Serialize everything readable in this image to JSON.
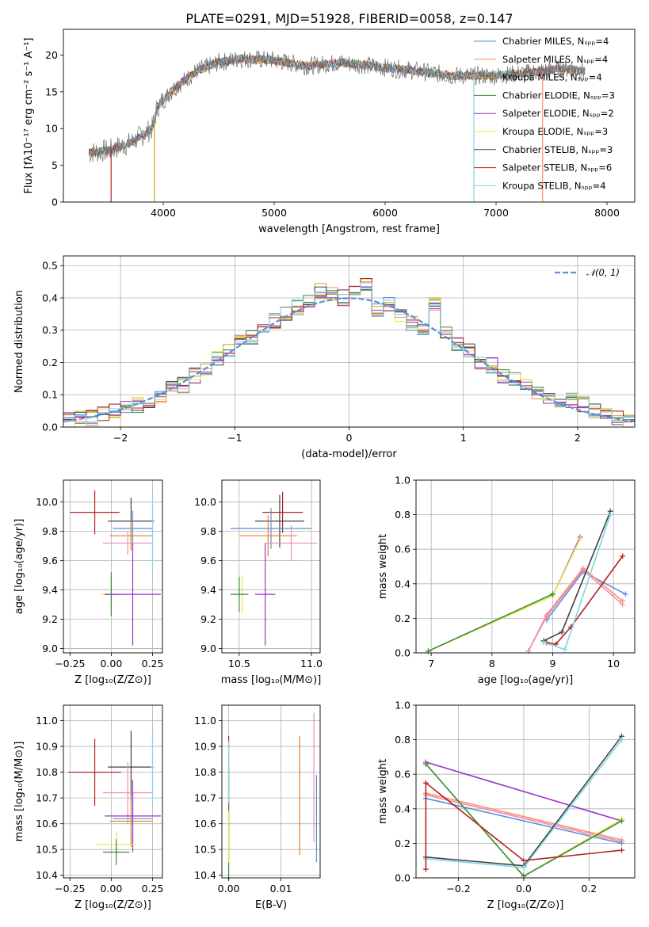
{
  "figure": {
    "title": "PLATE=0291, MJD=51928, FIBERID=0058, z=0.147",
    "colors": {
      "chabrier_miles": "#5b8fd9",
      "salpeter_miles": "#ff8c69",
      "kroupa_miles": "#d4a017",
      "chabrier_elodie": "#3a8a3a",
      "salpeter_elodie": "#9932cc",
      "kroupa_elodie": "#e8e84a",
      "chabrier_stelib": "#404040",
      "salpeter_stelib": "#b22222",
      "kroupa_stelib": "#7fd6e6",
      "gaussian": "#5b8fd9",
      "panel_err_orange": "#e67e22",
      "panel_err_pink": "#f08cb4"
    }
  },
  "chart_data": [
    {
      "id": "spectrum",
      "type": "line",
      "xlabel": "wavelength [Angstrom, rest frame]",
      "ylabel": "Flux [fλ10⁻¹⁷ erg cm⁻² s⁻¹ A⁻¹]",
      "xlim": [
        3100,
        8250
      ],
      "ylim": [
        0,
        23.5
      ],
      "xticks": [
        4000,
        5000,
        6000,
        7000,
        8000
      ],
      "yticks": [
        0,
        5,
        10,
        15,
        20
      ],
      "legend": [
        "Chabrier MILES, Nₛₚₚ=4",
        "Salpeter MILES, Nₛₚₚ=4",
        "Kroupa MILES, Nₛₚₚ=4",
        "Chabrier ELODIE, Nₛₚₚ=3",
        "Salpeter ELODIE, Nₛₚₚ=2",
        "Kroupa ELODIE, Nₛₚₚ=3",
        "Chabrier STELIB, Nₛₚₚ=3",
        "Salpeter STELIB, Nₛₚₚ=6",
        "Kroupa STELIB, Nₛₚₚ=4"
      ],
      "legend_position": "top-right",
      "continuum_x": [
        3330,
        3500,
        3700,
        3900,
        3950,
        4100,
        4300,
        4500,
        4700,
        5000,
        5300,
        5600,
        6000,
        6300,
        6600,
        7000,
        7300,
        7600,
        7800
      ],
      "continuum_y": [
        6.7,
        7.0,
        8.0,
        10.0,
        13.0,
        15.5,
        17.8,
        19.0,
        19.5,
        19.3,
        18.5,
        19.0,
        18.3,
        17.8,
        17.2,
        17.2,
        17.6,
        18.2,
        17.8
      ],
      "dropouts_x": [
        3530,
        3920,
        6800,
        7420
      ]
    },
    {
      "id": "residuals",
      "type": "line",
      "xlabel": "(data-model)/error",
      "ylabel": "Normed distribution",
      "xlim": [
        -2.5,
        2.5
      ],
      "ylim": [
        0,
        0.53
      ],
      "xticks": [
        -2,
        -1,
        0,
        1,
        2
      ],
      "yticks": [
        0.0,
        0.1,
        0.2,
        0.3,
        0.4,
        0.5
      ],
      "legend": [
        "𝒩(0, 1)"
      ],
      "legend_position": "top-right",
      "grid": true,
      "bin_centers": [
        -2.45,
        -2.35,
        -2.25,
        -2.15,
        -2.05,
        -1.95,
        -1.85,
        -1.75,
        -1.65,
        -1.55,
        -1.45,
        -1.35,
        -1.25,
        -1.15,
        -1.05,
        -0.95,
        -0.85,
        -0.75,
        -0.65,
        -0.55,
        -0.45,
        -0.35,
        -0.25,
        -0.15,
        -0.05,
        0.05,
        0.15,
        0.25,
        0.35,
        0.45,
        0.55,
        0.65,
        0.75,
        0.85,
        0.95,
        1.05,
        1.15,
        1.25,
        1.35,
        1.45,
        1.55,
        1.65,
        1.75,
        1.85,
        1.95,
        2.05,
        2.15,
        2.25,
        2.35,
        2.45
      ],
      "histogram": [
        0.02,
        0.03,
        0.03,
        0.04,
        0.05,
        0.06,
        0.07,
        0.08,
        0.1,
        0.12,
        0.13,
        0.16,
        0.18,
        0.21,
        0.24,
        0.26,
        0.28,
        0.31,
        0.33,
        0.35,
        0.37,
        0.39,
        0.42,
        0.41,
        0.4,
        0.42,
        0.44,
        0.36,
        0.38,
        0.35,
        0.32,
        0.3,
        0.38,
        0.3,
        0.26,
        0.24,
        0.2,
        0.19,
        0.16,
        0.15,
        0.13,
        0.11,
        0.09,
        0.08,
        0.08,
        0.07,
        0.05,
        0.04,
        0.03,
        0.02
      ]
    },
    {
      "id": "age_vs_Z",
      "type": "scatter",
      "xlabel": "Z [log₁₀(Z/Z⊙)]",
      "ylabel": "age  [log₁₀(age/yr)]",
      "xlim": [
        -0.29,
        0.31
      ],
      "ylim": [
        8.97,
        10.15
      ],
      "xticks": [
        -0.25,
        0.0,
        0.25
      ],
      "xticklabels": [
        "−0.25",
        "0.00",
        "0.25"
      ],
      "yticks": [
        9.0,
        9.2,
        9.4,
        9.6,
        9.8,
        10.0
      ],
      "grid": true,
      "points": [
        {
          "x": -0.1,
          "y": 9.93,
          "xerr": 0.15,
          "yerr": 0.15,
          "color": "#b22222"
        },
        {
          "x": 0.12,
          "y": 9.87,
          "xerr": 0.14,
          "yerr": 0.16,
          "color": "#404040"
        },
        {
          "x": 0.13,
          "y": 9.82,
          "xerr": 0.12,
          "yerr": 0.12,
          "color": "#5b8fd9"
        },
        {
          "x": 0.12,
          "y": 9.77,
          "xerr": 0.13,
          "yerr": 0.1,
          "color": "#e67e22"
        },
        {
          "x": 0.1,
          "y": 9.72,
          "xerr": 0.15,
          "yerr": 0.08,
          "color": "#f08cb4"
        },
        {
          "x": 0.25,
          "y": 9.8,
          "xerr": 0.01,
          "yerr": 0.25,
          "color": "#7fd6e6"
        },
        {
          "x": 0.0,
          "y": 9.37,
          "xerr": 0.06,
          "yerr": 0.12,
          "color": "#e8e84a"
        },
        {
          "x": 0.0,
          "y": 9.37,
          "xerr": 0.04,
          "yerr": 0.15,
          "color": "#3a8a3a"
        },
        {
          "x": 0.13,
          "y": 9.37,
          "xerr": 0.17,
          "yerr": 0.35,
          "color": "#9932cc"
        }
      ]
    },
    {
      "id": "age_vs_mass",
      "type": "scatter",
      "xlabel": "mass [log₁₀(M/M⊙)]",
      "ylabel": "",
      "xlim": [
        10.38,
        11.06
      ],
      "ylim": [
        8.97,
        10.15
      ],
      "xticks": [
        10.5,
        11.0
      ],
      "yticks": [
        9.0,
        9.2,
        9.4,
        9.6,
        9.8,
        10.0
      ],
      "grid": true,
      "points": [
        {
          "x": 10.8,
          "y": 9.93,
          "xerr": 0.14,
          "yerr": 0.14,
          "color": "#b22222"
        },
        {
          "x": 10.78,
          "y": 9.87,
          "xerr": 0.17,
          "yerr": 0.18,
          "color": "#404040"
        },
        {
          "x": 10.72,
          "y": 9.82,
          "xerr": 0.28,
          "yerr": 0.14,
          "color": "#5b8fd9"
        },
        {
          "x": 10.7,
          "y": 9.77,
          "xerr": 0.2,
          "yerr": 0.14,
          "color": "#e67e22"
        },
        {
          "x": 10.86,
          "y": 9.72,
          "xerr": 0.18,
          "yerr": 0.12,
          "color": "#f08cb4"
        },
        {
          "x": 10.52,
          "y": 9.37,
          "xerr": 0.05,
          "yerr": 0.13,
          "color": "#e8e84a"
        },
        {
          "x": 10.5,
          "y": 9.37,
          "xerr": 0.06,
          "yerr": 0.12,
          "color": "#3a8a3a"
        },
        {
          "x": 10.68,
          "y": 9.37,
          "xerr": 0.07,
          "yerr": 0.35,
          "color": "#9932cc"
        }
      ]
    },
    {
      "id": "weight_vs_age",
      "type": "line",
      "xlabel": "age  [log₁₀(age/yr)]",
      "ylabel": "mass weight",
      "xlim": [
        6.75,
        10.35
      ],
      "ylim": [
        0.0,
        1.0
      ],
      "xticks": [
        7,
        8,
        9,
        10
      ],
      "yticks": [
        0.0,
        0.2,
        0.4,
        0.6,
        0.8,
        1.0
      ],
      "grid": true,
      "series": [
        {
          "color": "#5b8fd9",
          "x": [
            8.9,
            9.5,
            10.2
          ],
          "y": [
            0.19,
            0.47,
            0.34
          ]
        },
        {
          "color": "#ff8c69",
          "x": [
            8.6,
            8.9,
            9.5,
            10.15
          ],
          "y": [
            0.01,
            0.22,
            0.49,
            0.3
          ]
        },
        {
          "color": "#f08cb4",
          "x": [
            8.6,
            8.9,
            9.5,
            10.15
          ],
          "y": [
            0.01,
            0.21,
            0.48,
            0.28
          ]
        },
        {
          "color": "#9932cc",
          "x": [
            9.0,
            9.45
          ],
          "y": [
            0.33,
            0.67
          ]
        },
        {
          "color": "#e8e84a",
          "x": [
            6.95,
            9.0,
            9.45
          ],
          "y": [
            0.01,
            0.33,
            0.66
          ]
        },
        {
          "color": "#3a8a3a",
          "x": [
            6.95,
            9.0
          ],
          "y": [
            0.01,
            0.34
          ]
        },
        {
          "color": "#404040",
          "x": [
            8.85,
            9.15,
            9.95
          ],
          "y": [
            0.07,
            0.12,
            0.82
          ]
        },
        {
          "color": "#b22222",
          "x": [
            8.9,
            9.05,
            9.3,
            10.15
          ],
          "y": [
            0.06,
            0.05,
            0.15,
            0.56
          ]
        },
        {
          "color": "#7fd6e6",
          "x": [
            8.85,
            9.2,
            9.95
          ],
          "y": [
            0.06,
            0.02,
            0.8
          ]
        }
      ]
    },
    {
      "id": "mass_vs_Z",
      "type": "scatter",
      "xlabel": "Z [log₁₀(Z/Z⊙)]",
      "ylabel": "mass [log₁₀(M/M⊙)]",
      "xlim": [
        -0.29,
        0.31
      ],
      "ylim": [
        10.39,
        11.06
      ],
      "xticks": [
        -0.25,
        0.0,
        0.25
      ],
      "xticklabels": [
        "−0.25",
        "0.00",
        "0.25"
      ],
      "yticks": [
        10.4,
        10.5,
        10.6,
        10.7,
        10.8,
        10.9,
        11.0
      ],
      "grid": true,
      "points": [
        {
          "x": -0.1,
          "y": 10.8,
          "xerr": 0.16,
          "yerr": 0.13,
          "color": "#b22222"
        },
        {
          "x": 0.12,
          "y": 10.82,
          "xerr": 0.14,
          "yerr": 0.14,
          "color": "#404040"
        },
        {
          "x": 0.1,
          "y": 10.72,
          "xerr": 0.15,
          "yerr": 0.12,
          "color": "#f08cb4"
        },
        {
          "x": 0.13,
          "y": 10.62,
          "xerr": 0.12,
          "yerr": 0.1,
          "color": "#5b8fd9"
        },
        {
          "x": 0.12,
          "y": 10.61,
          "xerr": 0.13,
          "yerr": 0.1,
          "color": "#e67e22"
        },
        {
          "x": 0.13,
          "y": 10.63,
          "xerr": 0.17,
          "yerr": 0.14,
          "color": "#9932cc"
        },
        {
          "x": 0.25,
          "y": 10.82,
          "xerr": 0.01,
          "yerr": 0.14,
          "color": "#7fd6e6"
        },
        {
          "x": 0.03,
          "y": 10.52,
          "xerr": 0.12,
          "yerr": 0.05,
          "color": "#e8e84a"
        },
        {
          "x": 0.03,
          "y": 10.49,
          "xerr": 0.08,
          "yerr": 0.05,
          "color": "#3a8a3a"
        }
      ]
    },
    {
      "id": "mass_vs_ebv",
      "type": "scatter",
      "xlabel": "E(B-V)",
      "ylabel": "",
      "xlim": [
        -0.0013,
        0.0175
      ],
      "ylim": [
        10.39,
        11.06
      ],
      "xticks": [
        0.0,
        0.01
      ],
      "xticklabels": [
        "0.00",
        "0.01"
      ],
      "yticks": [
        10.4,
        10.5,
        10.6,
        10.7,
        10.8,
        10.9,
        11.0
      ],
      "grid": true,
      "points": [
        {
          "x": 0.0,
          "y": 10.7,
          "xerr": 0,
          "yerr": 0.24,
          "color": "#b22222"
        },
        {
          "x": 0.0,
          "y": 10.6,
          "xerr": 0,
          "yerr": 0.22,
          "color": "#3a8a3a"
        },
        {
          "x": 0.0,
          "y": 10.8,
          "xerr": 0,
          "yerr": 0.12,
          "color": "#7fd6e6"
        },
        {
          "x": 0.0,
          "y": 10.55,
          "xerr": 0,
          "yerr": 0.1,
          "color": "#e8e84a"
        },
        {
          "x": 0.0136,
          "y": 10.71,
          "xerr": 0,
          "yerr": 0.23,
          "color": "#e67e22"
        },
        {
          "x": 0.0163,
          "y": 10.78,
          "xerr": 0,
          "yerr": 0.25,
          "color": "#f08cb4"
        },
        {
          "x": 0.0168,
          "y": 10.62,
          "xerr": 0,
          "yerr": 0.17,
          "color": "#5b8fd9"
        }
      ]
    },
    {
      "id": "weight_vs_Z",
      "type": "line",
      "xlabel": "Z [log₁₀(Z/Z⊙)]",
      "ylabel": "mass weight",
      "xlim": [
        -0.33,
        0.34
      ],
      "ylim": [
        0.0,
        1.0
      ],
      "xticks": [
        -0.2,
        0.0,
        0.2
      ],
      "xticklabels": [
        "−0.2",
        "0.0",
        "0.2"
      ],
      "yticks": [
        0.0,
        0.2,
        0.4,
        0.6,
        0.8,
        1.0
      ],
      "grid": true,
      "series": [
        {
          "color": "#9932cc",
          "x": [
            -0.3,
            0.3
          ],
          "y": [
            0.67,
            0.33
          ]
        },
        {
          "color": "#ff8c69",
          "x": [
            -0.3,
            0.3
          ],
          "y": [
            0.49,
            0.22
          ]
        },
        {
          "color": "#f08cb4",
          "x": [
            -0.3,
            0.3
          ],
          "y": [
            0.48,
            0.21
          ]
        },
        {
          "color": "#5b8fd9",
          "x": [
            -0.3,
            0.3
          ],
          "y": [
            0.46,
            0.2
          ]
        },
        {
          "color": "#e8e84a",
          "x": [
            -0.3,
            0.0,
            0.3
          ],
          "y": [
            0.66,
            0.01,
            0.34
          ]
        },
        {
          "color": "#3a8a3a",
          "x": [
            -0.3,
            0.0,
            0.3
          ],
          "y": [
            0.66,
            0.01,
            0.33
          ]
        },
        {
          "color": "#404040",
          "x": [
            -0.3,
            0.0,
            0.3
          ],
          "y": [
            0.12,
            0.07,
            0.82
          ]
        },
        {
          "color": "#7fd6e6",
          "x": [
            -0.3,
            0.0,
            0.3
          ],
          "y": [
            0.11,
            0.06,
            0.8
          ]
        },
        {
          "color": "#b22222",
          "x": [
            -0.3,
            -0.3,
            0.0,
            0.3
          ],
          "y": [
            0.05,
            0.55,
            0.1,
            0.16
          ]
        }
      ]
    }
  ]
}
